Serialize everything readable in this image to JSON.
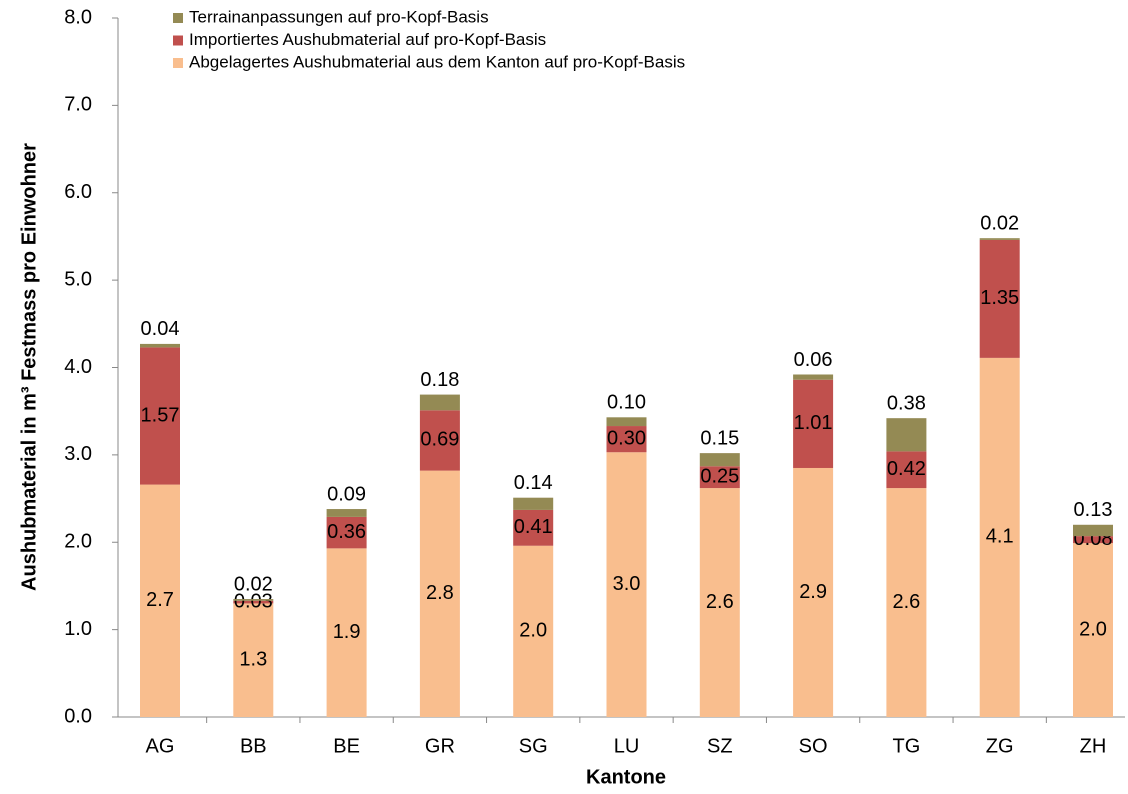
{
  "chart_data": {
    "type": "stacked_bar",
    "x_label": "Kantone",
    "y_label": "Aushubmaterial in m³ Festmass pro Einwohner",
    "categories": [
      "AG",
      "BB",
      "BE",
      "GR",
      "SG",
      "LU",
      "SZ",
      "SO",
      "TG",
      "ZG",
      "ZH"
    ],
    "series": [
      {
        "name": "Abgelagertes Aushubmaterial aus dem Kanton auf pro-Kopf-Basis",
        "color": "#f9be8e",
        "values": [
          2.66,
          1.3,
          1.93,
          2.82,
          1.96,
          3.03,
          2.62,
          2.85,
          2.62,
          4.11,
          1.99
        ],
        "value_labels": [
          "2.7",
          "1.3",
          "1.9",
          "2.8",
          "2.0",
          "3.0",
          "2.6",
          "2.9",
          "2.6",
          "4.1",
          "2.0"
        ]
      },
      {
        "name": "Importiertes Aushubmaterial auf pro-Kopf-Basis",
        "color": "#c0504d",
        "values": [
          1.57,
          0.03,
          0.36,
          0.69,
          0.41,
          0.3,
          0.25,
          1.01,
          0.42,
          1.35,
          0.08
        ],
        "value_labels": [
          "1.57",
          "0.03",
          "0.36",
          "0.69",
          "0.41",
          "0.30",
          "0.25",
          "1.01",
          "0.42",
          "1.35",
          "0.08"
        ]
      },
      {
        "name": "Terrainanpassungen auf pro-Kopf-Basis",
        "color": "#948a54",
        "values": [
          0.04,
          0.02,
          0.09,
          0.18,
          0.14,
          0.1,
          0.15,
          0.06,
          0.38,
          0.02,
          0.13
        ],
        "value_labels": [
          "0.04",
          "0.02",
          "0.09",
          "0.18",
          "0.14",
          "0.10",
          "0.15",
          "0.06",
          "0.38",
          "0.02",
          "0.13"
        ]
      }
    ],
    "ylim": [
      0,
      8
    ],
    "yticks": [
      {
        "value": 0,
        "label": "0.0"
      },
      {
        "value": 1,
        "label": "1.0"
      },
      {
        "value": 2,
        "label": "2.0"
      },
      {
        "value": 3,
        "label": "3.0"
      },
      {
        "value": 4,
        "label": "4.0"
      },
      {
        "value": 5,
        "label": "5.0"
      },
      {
        "value": 6,
        "label": "6.0"
      },
      {
        "value": 7,
        "label": "7.0"
      },
      {
        "value": 8,
        "label": "8.0"
      }
    ],
    "grid": false,
    "legend": "top-left"
  }
}
